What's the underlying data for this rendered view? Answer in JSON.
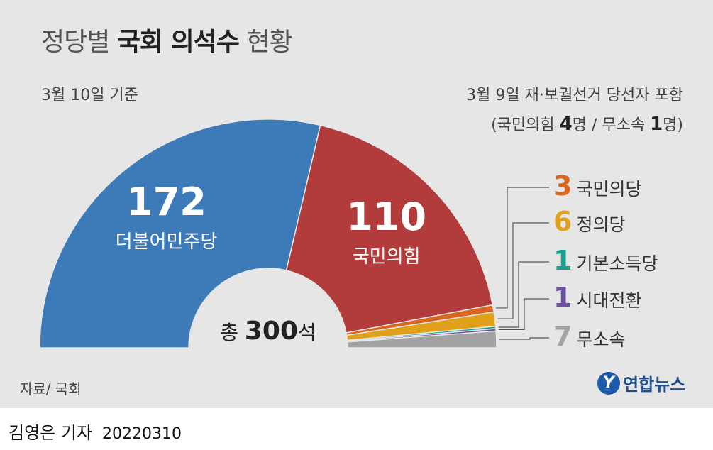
{
  "title": {
    "part1": "정당별 ",
    "bold": "국회 의석수",
    "part2": " 현황"
  },
  "basis_date": "3월 10일 기준",
  "note_line1": "3월 9일 재·보궐선거 당선자 포함",
  "note_line2": {
    "pre": "(국민의힘 ",
    "n1": "4",
    "mid": "명 / 무소속 ",
    "n2": "1",
    "post": "명)"
  },
  "total": {
    "prefix": "총 ",
    "value": "300",
    "suffix": "석"
  },
  "source": "자료/ 국회",
  "logo": {
    "mark": "Y",
    "text": "연합뉴스"
  },
  "byline": {
    "author": "김영은 기자",
    "date": "20220310"
  },
  "chart_data": {
    "type": "pie",
    "subtype": "semicircle",
    "total": 300,
    "series": [
      {
        "name": "더불어민주당",
        "value": 172,
        "color": "#3d7ab8"
      },
      {
        "name": "국민의힘",
        "value": 110,
        "color": "#b23b3b"
      },
      {
        "name": "국민의당",
        "value": 3,
        "color": "#d9661f"
      },
      {
        "name": "정의당",
        "value": 6,
        "color": "#e0a01a"
      },
      {
        "name": "기본소득당",
        "value": 1,
        "color": "#1a9f8f"
      },
      {
        "name": "시대전환",
        "value": 1,
        "color": "#6a4fa0"
      },
      {
        "name": "무소속",
        "value": 7,
        "color": "#a3a3a3"
      }
    ]
  }
}
